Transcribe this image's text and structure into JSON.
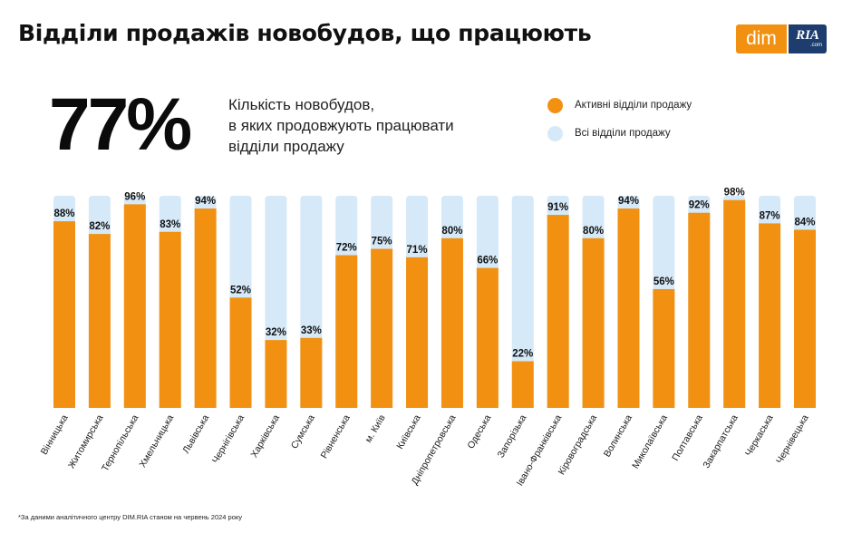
{
  "header": {
    "title": "Відділи продажів новобудов, що працюють",
    "logo_left": "dim",
    "logo_right": "RIA",
    "logo_right_sub": ".com"
  },
  "summary": {
    "value": "77%",
    "description_lines": [
      "Кількість новобудов,",
      "в яких продовжують працювати",
      "відділи продажу"
    ]
  },
  "legend": [
    {
      "label": "Активні відділи продажу",
      "color": "#f29111"
    },
    {
      "label": "Всі відділи продажу",
      "color": "#d6e9f8"
    }
  ],
  "chart_data": {
    "type": "bar",
    "ylim": [
      0,
      100
    ],
    "grid": false,
    "legend_position": "top-right",
    "categories": [
      "Вінницька",
      "Житомирська",
      "Тернопільська",
      "Хмельницька",
      "Львівська",
      "Чернігівська",
      "Харківська",
      "Сумська",
      "Рівненська",
      "м. Київ",
      "Київська",
      "Дніпропетровська",
      "Одеська",
      "Запорізька",
      "Івано-Франківська",
      "Кіровоградська",
      "Волинська",
      "Миколаївська",
      "Полтавська",
      "Закарпатська",
      "Черкаська",
      "Чернівецька"
    ],
    "series": [
      {
        "name": "Активні відділи продажу",
        "color": "#f29111",
        "values": [
          88,
          82,
          96,
          83,
          94,
          52,
          32,
          33,
          72,
          75,
          71,
          80,
          66,
          22,
          91,
          80,
          94,
          56,
          92,
          98,
          87,
          84
        ],
        "labels": [
          "88%",
          "82%",
          "96%",
          "83%",
          "94%",
          "52%",
          "32%",
          "33%",
          "72%",
          "75%",
          "71%",
          "80%",
          "66%",
          "22%",
          "91%",
          "80%",
          "94%",
          "56%",
          "92%",
          "98%",
          "87%",
          "84%"
        ]
      },
      {
        "name": "Всі відділи продажу",
        "color": "#d6e9f8",
        "values": [
          100,
          100,
          100,
          100,
          100,
          100,
          100,
          100,
          100,
          100,
          100,
          100,
          100,
          100,
          100,
          100,
          100,
          100,
          100,
          100,
          100,
          100
        ]
      }
    ]
  },
  "footnote": "*За даними аналітичного центру DIM.RIA станом на червень 2024 року"
}
